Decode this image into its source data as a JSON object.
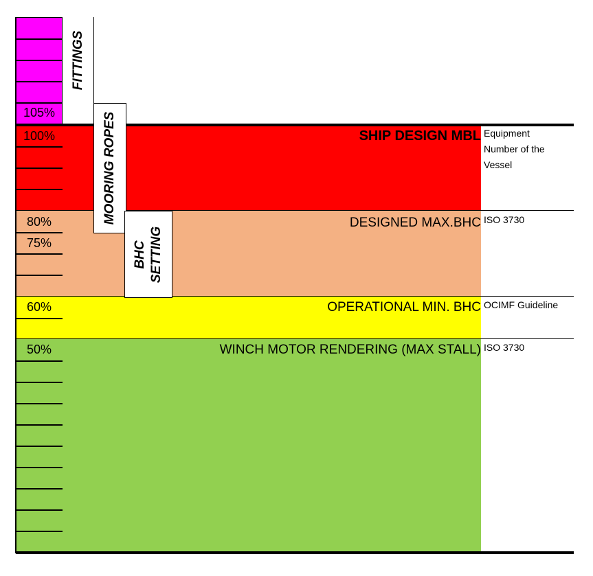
{
  "columns": {
    "fittings": "FITTINGS",
    "mooring_ropes": "MOORING ROPES",
    "bhc_setting": [
      "BHC",
      "SETTING"
    ]
  },
  "bands": {
    "ship_design_mbl": {
      "label": "SHIP DESIGN MBL",
      "color": "#ff0000",
      "note": [
        "Equipment",
        "Number of the",
        "Vessel"
      ]
    },
    "designed_max_bhc": {
      "label": "DESIGNED MAX.BHC",
      "color": "#f4b183",
      "note": "ISO 3730"
    },
    "operational_min_bhc": {
      "label": "OPERATIONAL MIN. BHC",
      "color": "#ffff00",
      "note": "OCIMF Guideline"
    },
    "winch_motor_rendering": {
      "label": "WINCH MOTOR RENDERING (MAX STALL)",
      "color": "#92d050",
      "note": "ISO 3730"
    }
  },
  "fittings_color": "#ff00ff",
  "percentages": {
    "p105": "105%",
    "p100": "100%",
    "p80": "80%",
    "p75": "75%",
    "p60": "60%",
    "p50": "50%"
  }
}
